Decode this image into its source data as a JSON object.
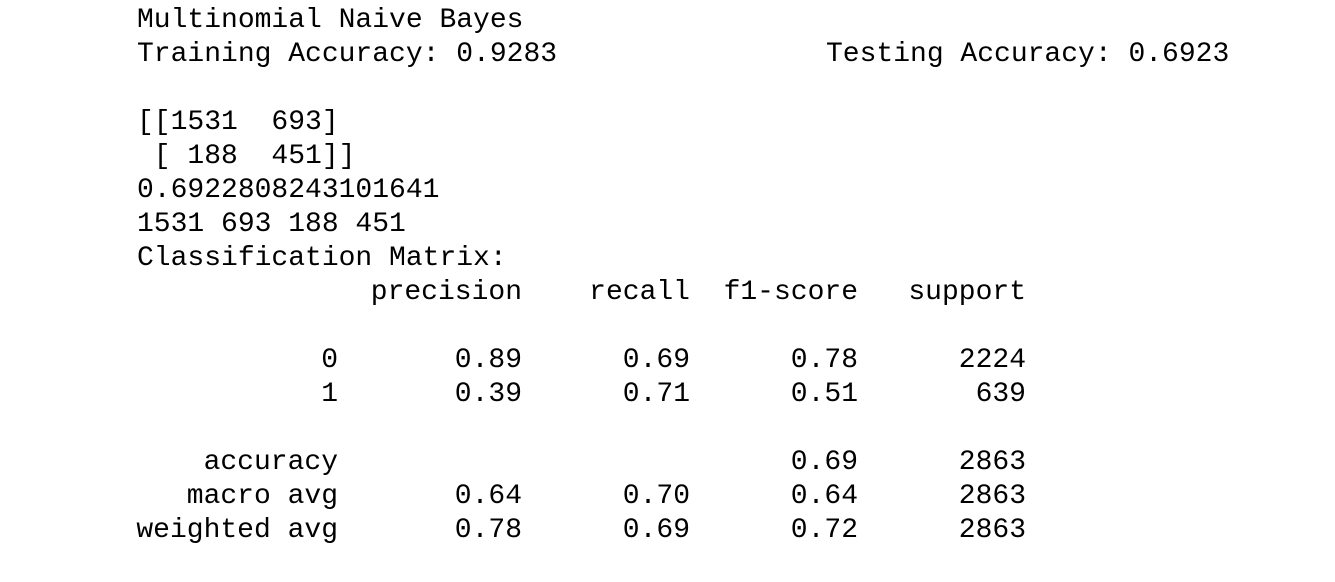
{
  "header": {
    "title": "Multinomial Naive Bayes",
    "training_accuracy": "Training Accuracy: 0.9283",
    "testing_accuracy": "Testing Accuracy: 0.6923"
  },
  "output_lines": [
    "[[1531  693]",
    " [ 188  451]]",
    "0.6922808243101641",
    "1531 693 188 451",
    "Classification Matrix:"
  ],
  "report": {
    "columns": [
      "precision",
      "recall",
      "f1-score",
      "support"
    ],
    "rows": [
      [
        "0",
        "0.89",
        "0.69",
        "0.78",
        "2224"
      ],
      [
        "1",
        "0.39",
        "0.71",
        "0.51",
        "639"
      ],
      [
        "accuracy",
        null,
        null,
        "0.69",
        "2863"
      ],
      [
        "macro avg",
        "0.64",
        "0.70",
        "0.64",
        "2863"
      ],
      [
        "weighted avg",
        "0.78",
        "0.69",
        "0.72",
        "2863"
      ]
    ]
  }
}
